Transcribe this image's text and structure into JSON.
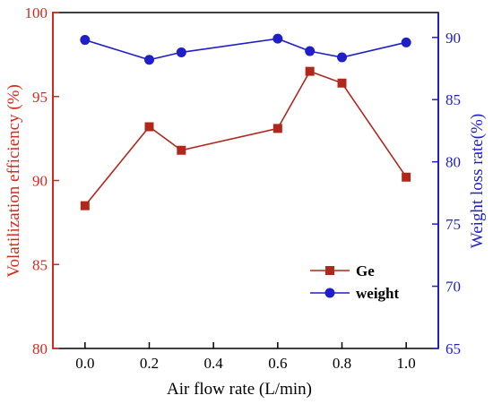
{
  "chart_data": {
    "type": "line",
    "x": [
      0.0,
      0.2,
      0.3,
      0.6,
      0.7,
      0.8,
      1.0
    ],
    "xlabel": "Air flow rate (L/min)",
    "xlim": [
      -0.1,
      1.1
    ],
    "xticks": [
      0.0,
      0.2,
      0.4,
      0.6,
      0.8,
      1.0
    ],
    "xtick_labels": [
      "0.0",
      "0.2",
      "0.4",
      "0.6",
      "0.8",
      "1.0"
    ],
    "y_left": {
      "label": "Volatilization efficiency (%)",
      "lim": [
        80,
        100
      ],
      "ticks": [
        80,
        85,
        90,
        95,
        100
      ],
      "tick_labels": [
        "80",
        "85",
        "90",
        "95",
        "100"
      ],
      "color": "#d42a1e"
    },
    "y_right": {
      "label": "Weight loss rate(%)",
      "lim": [
        65,
        92
      ],
      "ticks": [
        65,
        70,
        75,
        80,
        85,
        90
      ],
      "tick_labels": [
        "65",
        "70",
        "75",
        "80",
        "85",
        "90"
      ],
      "color": "#1f1fc8"
    },
    "series": [
      {
        "name": "Ge",
        "axis": "left",
        "marker": "square",
        "color": "#b0281c",
        "values": [
          88.5,
          93.2,
          91.8,
          93.1,
          96.5,
          95.8,
          90.2
        ]
      },
      {
        "name": "weight",
        "axis": "right",
        "marker": "circle",
        "color": "#1f1fc8",
        "values": [
          89.8,
          88.2,
          88.8,
          89.9,
          88.9,
          88.4,
          89.6
        ]
      }
    ],
    "legend": "lower-right",
    "grid": false
  }
}
